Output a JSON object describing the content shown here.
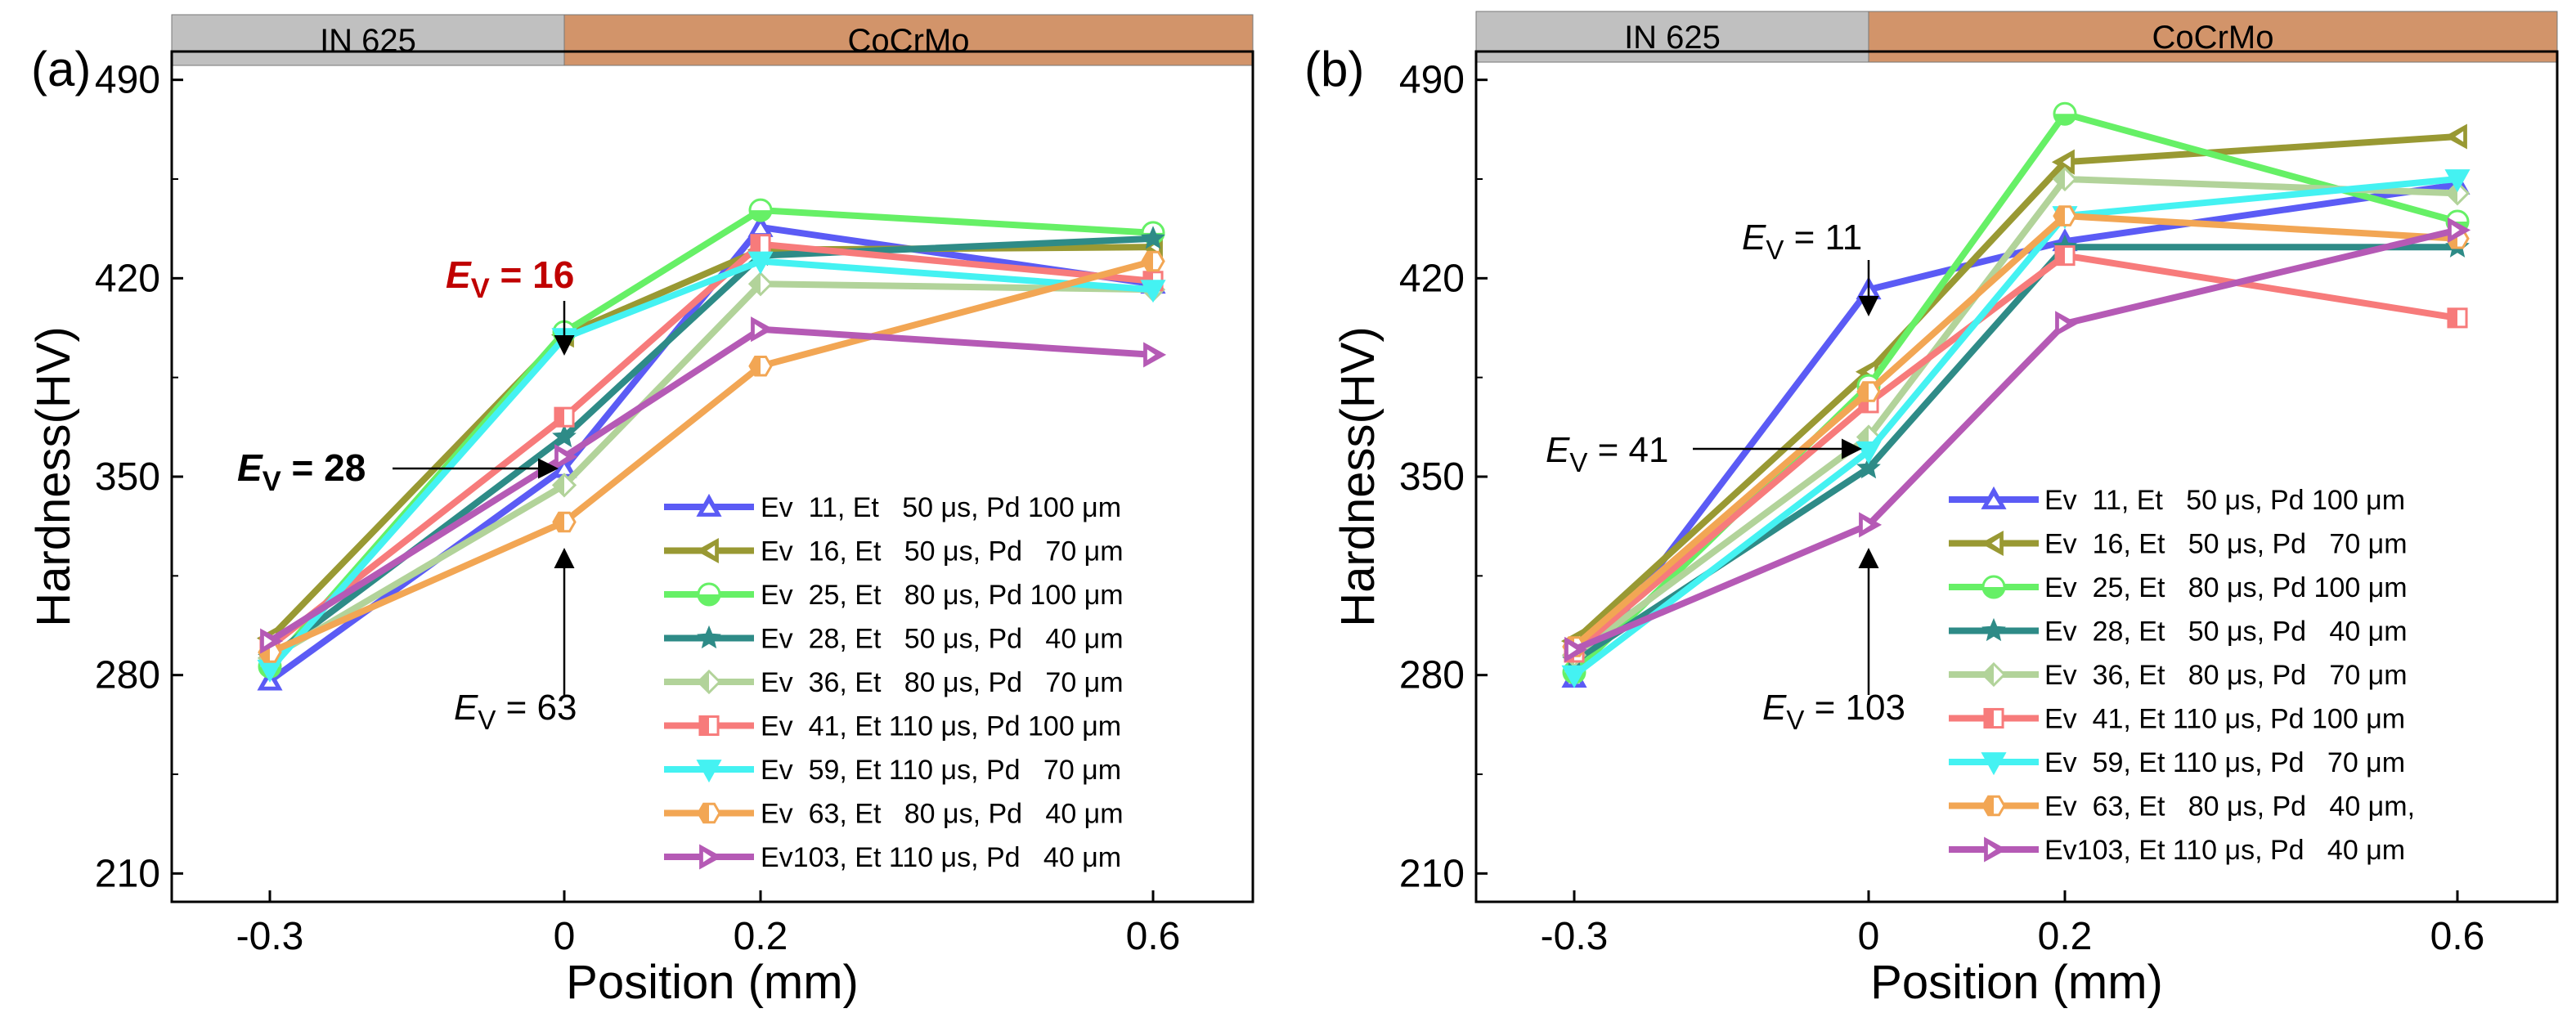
{
  "chart_data": [
    {
      "type": "line",
      "panel": "(a)",
      "bands": [
        {
          "label": "IN 625",
          "color": "#c0c0c0",
          "from": -0.3,
          "to": 0
        },
        {
          "label": "CoCrMo",
          "color": "#d2946a",
          "from": 0,
          "to": 0.6
        }
      ],
      "xlabel": "Position (mm)",
      "ylabel": "Hardness(HV)",
      "x": [
        -0.3,
        0,
        0.2,
        0.6
      ],
      "x_tick_labels": [
        "-0.3",
        "0",
        "0.2",
        "0.6"
      ],
      "yticks": [
        210,
        280,
        350,
        420,
        490
      ],
      "ylim": [
        200,
        500
      ],
      "legend_position": "bottom-right",
      "series": [
        {
          "name": "Ev  11, Et   50 μs, Pd 100 μm",
          "color": "#5b5bf5",
          "marker": "triangle-up",
          "values": [
            278,
            353,
            438,
            418
          ]
        },
        {
          "name": "Ev  16, Et   50 μs, Pd   70 μm",
          "color": "#999933",
          "marker": "triangle-left",
          "values": [
            293,
            400,
            430,
            431
          ]
        },
        {
          "name": "Ev  25, Et   80 μs, Pd 100 μm",
          "color": "#66f066",
          "marker": "circle",
          "values": [
            283,
            401,
            444,
            436
          ]
        },
        {
          "name": "Ev  28, Et   50 μs, Pd   40 μm",
          "color": "#2e8b87",
          "marker": "star",
          "values": [
            286,
            364,
            428,
            434
          ]
        },
        {
          "name": "Ev  36, Et   80 μs, Pd   70 μm",
          "color": "#b2d39a",
          "marker": "diamond",
          "values": [
            286,
            347,
            418,
            416
          ]
        },
        {
          "name": "Ev  41, Et 110 μs, Pd 100 μm",
          "color": "#f77b7b",
          "marker": "square",
          "values": [
            290,
            371,
            432,
            419
          ]
        },
        {
          "name": "Ev  59, Et 110 μs, Pd   70 μm",
          "color": "#44f2f2",
          "marker": "triangle-down",
          "values": [
            282,
            399,
            426,
            416
          ]
        },
        {
          "name": "Ev  63, Et   80 μs, Pd   40 μm",
          "color": "#f2a654",
          "marker": "hexagon",
          "values": [
            288,
            334,
            389,
            426
          ]
        },
        {
          "name": "Ev103, Et 110 μs, Pd   40 μm",
          "color": "#b55ab5",
          "marker": "triangle-right",
          "values": [
            292,
            357,
            402,
            393
          ]
        }
      ],
      "annotations": [
        {
          "sym": "E",
          "sub": "V",
          "val": " = 16",
          "style": "bold-red",
          "color": "#c00000",
          "x": 0,
          "y": 400
        },
        {
          "sym": "E",
          "sub": "V",
          "val": " = 28",
          "style": "bold",
          "color": "#000000",
          "x": 0,
          "y": 364
        },
        {
          "sym": "E",
          "sub": "V",
          "val": " = 63",
          "style": "normal",
          "color": "#000000",
          "x": 0,
          "y": 334
        }
      ]
    },
    {
      "type": "line",
      "panel": "(b)",
      "bands": [
        {
          "label": "IN 625",
          "color": "#c0c0c0",
          "from": -0.3,
          "to": 0
        },
        {
          "label": "CoCrMo",
          "color": "#d2946a",
          "from": 0,
          "to": 0.6
        }
      ],
      "xlabel": "Position (mm)",
      "ylabel": "Hardness(HV)",
      "x": [
        -0.3,
        0,
        0.2,
        0.6
      ],
      "x_tick_labels": [
        "-0.3",
        "0",
        "0.2",
        "0.6"
      ],
      "yticks": [
        210,
        280,
        350,
        420,
        490
      ],
      "ylim": [
        200,
        500
      ],
      "legend_position": "bottom-right",
      "series": [
        {
          "name": "Ev  11, Et   50 μs, Pd 100 μm",
          "color": "#5b5bf5",
          "marker": "triangle-up",
          "values": [
            279,
            416,
            433,
            453
          ]
        },
        {
          "name": "Ev  16, Et   50 μs, Pd   70 μm",
          "color": "#999933",
          "marker": "triangle-left",
          "values": [
            292,
            387,
            461,
            470
          ]
        },
        {
          "name": "Ev  25, Et   80 μs, Pd 100 μm",
          "color": "#66f066",
          "marker": "circle",
          "values": [
            281,
            382,
            478,
            440
          ]
        },
        {
          "name": "Ev  28, Et   50 μs, Pd   40 μm",
          "color": "#2e8b87",
          "marker": "star",
          "values": [
            285,
            353,
            431,
            431
          ]
        },
        {
          "name": "Ev  36, Et   80 μs, Pd   70 μm",
          "color": "#b2d39a",
          "marker": "diamond",
          "values": [
            287,
            364,
            455,
            450
          ]
        },
        {
          "name": "Ev  41, Et 110 μs, Pd 100 μm",
          "color": "#f77b7b",
          "marker": "square",
          "values": [
            288,
            376,
            428,
            406
          ]
        },
        {
          "name": "Ev  59, Et 110 μs, Pd   70 μm",
          "color": "#44f2f2",
          "marker": "triangle-down",
          "values": [
            280,
            359,
            442,
            455
          ]
        },
        {
          "name": "Ev  63, Et   80 μs, Pd   40 μm,",
          "color": "#f2a654",
          "marker": "hexagon",
          "values": [
            290,
            380,
            442,
            434
          ]
        },
        {
          "name": "Ev103, Et 110 μs, Pd   40 μm",
          "color": "#b55ab5",
          "marker": "triangle-right",
          "values": [
            289,
            333,
            404,
            437
          ]
        }
      ],
      "annotations": [
        {
          "sym": "E",
          "sub": "V",
          "val": " = 11",
          "style": "normal",
          "color": "#000000",
          "x": 0,
          "y": 416
        },
        {
          "sym": "E",
          "sub": "V",
          "val": " = 41",
          "style": "normal",
          "color": "#000000",
          "x": 0,
          "y": 376
        },
        {
          "sym": "E",
          "sub": "V",
          "val": " = 103",
          "style": "normal",
          "color": "#000000",
          "x": 0,
          "y": 333
        }
      ]
    }
  ]
}
